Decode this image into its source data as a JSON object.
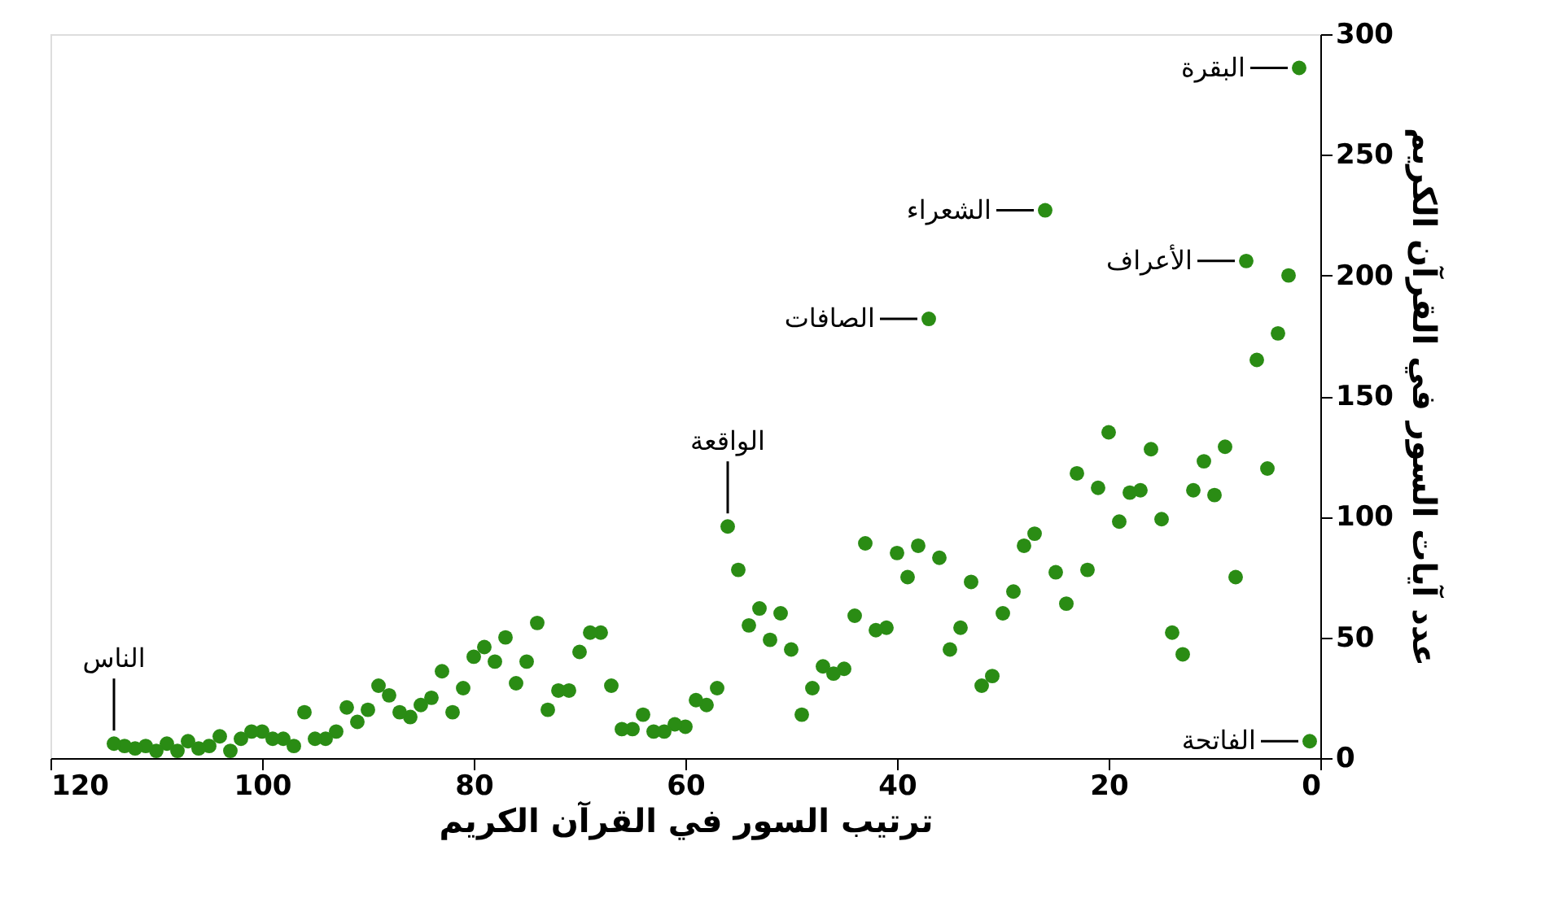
{
  "chart_data": {
    "type": "scatter",
    "xlabel": "ترتيب السور في القرآن الكريم",
    "ylabel": "عدد آيات السور في القرآن الكريم",
    "x": [
      1,
      2,
      3,
      4,
      5,
      6,
      7,
      8,
      9,
      10,
      11,
      12,
      13,
      14,
      15,
      16,
      17,
      18,
      19,
      20,
      21,
      22,
      23,
      24,
      25,
      26,
      27,
      28,
      29,
      30,
      31,
      32,
      33,
      34,
      35,
      36,
      37,
      38,
      39,
      40,
      41,
      42,
      43,
      44,
      45,
      46,
      47,
      48,
      49,
      50,
      51,
      52,
      53,
      54,
      55,
      56,
      57,
      58,
      59,
      60,
      61,
      62,
      63,
      64,
      65,
      66,
      67,
      68,
      69,
      70,
      71,
      72,
      73,
      74,
      75,
      76,
      77,
      78,
      79,
      80,
      81,
      82,
      83,
      84,
      85,
      86,
      87,
      88,
      89,
      90,
      91,
      92,
      93,
      94,
      95,
      96,
      97,
      98,
      99,
      100,
      101,
      102,
      103,
      104,
      105,
      106,
      107,
      108,
      109,
      110,
      111,
      112,
      113,
      114
    ],
    "series": [
      {
        "color": "#2a8c14",
        "values": [
          7,
          286,
          200,
          176,
          120,
          165,
          206,
          75,
          129,
          109,
          123,
          111,
          43,
          52,
          99,
          128,
          111,
          110,
          98,
          135,
          112,
          78,
          118,
          64,
          77,
          227,
          93,
          88,
          69,
          60,
          34,
          30,
          73,
          54,
          45,
          83,
          182,
          88,
          75,
          85,
          54,
          53,
          89,
          59,
          37,
          35,
          38,
          29,
          18,
          45,
          60,
          49,
          62,
          55,
          78,
          96,
          29,
          22,
          24,
          13,
          14,
          11,
          11,
          18,
          12,
          12,
          30,
          52,
          52,
          44,
          28,
          28,
          20,
          56,
          40,
          31,
          50,
          40,
          46,
          42,
          29,
          19,
          36,
          25,
          22,
          17,
          19,
          26,
          30,
          20,
          15,
          21,
          11,
          8,
          8,
          19,
          5,
          8,
          8,
          11,
          11,
          8,
          3,
          9,
          5,
          4,
          7,
          3,
          6,
          3,
          5,
          4,
          5,
          6
        ]
      }
    ],
    "xlim": [
      120,
      0
    ],
    "xticks": [
      120,
      100,
      80,
      60,
      40,
      20,
      0
    ],
    "ylim": [
      0,
      300
    ],
    "yticks": [
      0,
      50,
      100,
      150,
      200,
      250,
      300
    ],
    "grid": false,
    "marker": "circle",
    "annotations": [
      {
        "text": "البقرة",
        "x": 2,
        "y": 286
      },
      {
        "text": "الشعراء",
        "x": 26,
        "y": 227
      },
      {
        "text": "الأعراف",
        "x": 7,
        "y": 206
      },
      {
        "text": "الصافات",
        "x": 37,
        "y": 182
      },
      {
        "text": "الواقعة",
        "x": 56,
        "y": 96
      },
      {
        "text": "الناس",
        "x": 114,
        "y": 6
      },
      {
        "text": "الفاتحة",
        "x": 1,
        "y": 7
      }
    ]
  }
}
